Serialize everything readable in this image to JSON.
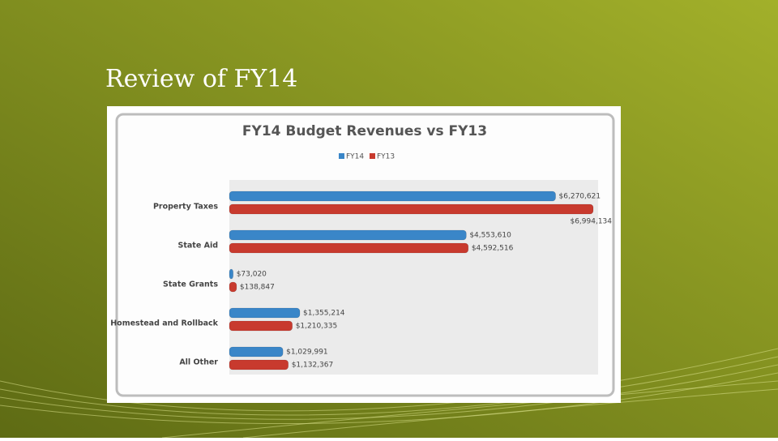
{
  "slide": {
    "title": "Review of FY14"
  },
  "chart_data": {
    "type": "hbar",
    "title": "FY14 Budget Revenues vs FY13",
    "categories": [
      "Property Taxes",
      "State Aid",
      "State Grants",
      "Homestead and Rollback",
      "All Other"
    ],
    "series": [
      {
        "name": "FY14",
        "color": "#3a86c8",
        "values": [
          6270621,
          4553610,
          73020,
          1355214,
          1029991
        ],
        "value_labels": [
          "$6,270,621",
          "$4,553,610",
          "$73,020",
          "$1,355,214",
          "$1,029,991"
        ]
      },
      {
        "name": "FY13",
        "color": "#c83a2e",
        "values": [
          6994134,
          4592516,
          138847,
          1210335,
          1132367
        ],
        "value_labels": [
          "$6,994,134",
          "$4,592,516",
          "$138,847",
          "$1,210,335",
          "$1,132,367"
        ]
      }
    ],
    "legend": "top"
  }
}
